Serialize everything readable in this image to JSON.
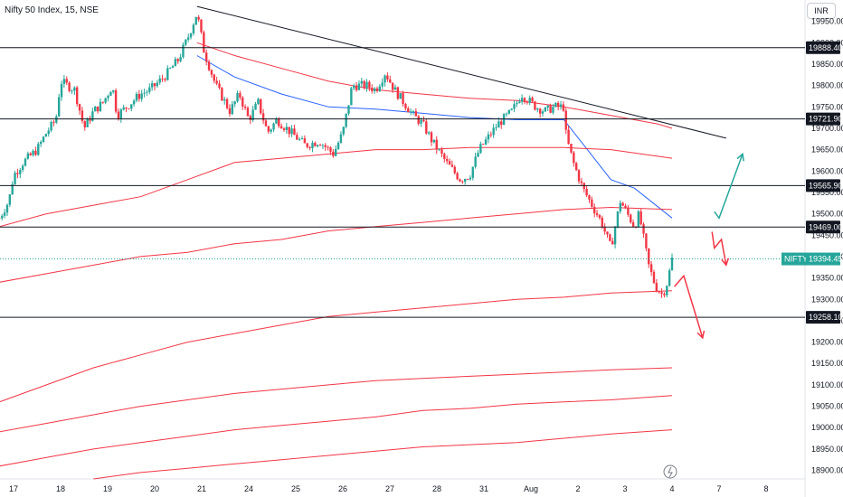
{
  "chart_data": {
    "type": "candlestick",
    "title": "Nifty 50 Index, 15, NSE",
    "currency": "INR",
    "ylim": [
      18880,
      20000
    ],
    "y_ticks": [
      19950,
      19900,
      19850,
      19800,
      19750,
      19700,
      19650,
      19600,
      19550,
      19500,
      19450,
      19400,
      19350,
      19300,
      19250,
      19200,
      19150,
      19100,
      19050,
      19000,
      18950,
      18900
    ],
    "x_ticks": [
      {
        "label": "17",
        "x": 0.3
      },
      {
        "label": "18",
        "x": 1.3
      },
      {
        "label": "19",
        "x": 2.3
      },
      {
        "label": "20",
        "x": 3.3
      },
      {
        "label": "21",
        "x": 4.3
      },
      {
        "label": "24",
        "x": 5.3
      },
      {
        "label": "25",
        "x": 6.3
      },
      {
        "label": "26",
        "x": 7.3
      },
      {
        "label": "27",
        "x": 8.3
      },
      {
        "label": "28",
        "x": 9.3
      },
      {
        "label": "31",
        "x": 10.3
      },
      {
        "label": "Aug",
        "x": 11.3
      },
      {
        "label": "2",
        "x": 12.3
      },
      {
        "label": "3",
        "x": 13.3
      },
      {
        "label": "4",
        "x": 14.3
      },
      {
        "label": "7",
        "x": 15.3
      },
      {
        "label": "8",
        "x": 16.3
      }
    ],
    "horizontal_levels": [
      {
        "value": 19888.4,
        "label": "19888.40"
      },
      {
        "value": 19721.9,
        "label": "19721.90"
      },
      {
        "value": 19565.9,
        "label": "19565.90"
      },
      {
        "value": 19469.0,
        "label": "19469.00"
      },
      {
        "value": 19258.1,
        "label": "19258.10"
      }
    ],
    "current_price": {
      "symbol": "NIFTY",
      "value": 19394.45,
      "label": "19394.45"
    },
    "trendline": {
      "from": {
        "x": 4.2,
        "y": 19985
      },
      "to": {
        "x": 15.45,
        "y": 19677
      }
    },
    "ohlc_anchors": [
      [
        0.0,
        19490
      ],
      [
        0.2,
        19530
      ],
      [
        0.3,
        19590
      ],
      [
        0.5,
        19620
      ],
      [
        0.8,
        19650
      ],
      [
        1.0,
        19690
      ],
      [
        1.2,
        19720
      ],
      [
        1.3,
        19810
      ],
      [
        1.6,
        19790
      ],
      [
        1.8,
        19700
      ],
      [
        2.0,
        19740
      ],
      [
        2.2,
        19760
      ],
      [
        2.4,
        19800
      ],
      [
        2.5,
        19730
      ],
      [
        2.7,
        19750
      ],
      [
        3.0,
        19780
      ],
      [
        3.2,
        19790
      ],
      [
        3.5,
        19820
      ],
      [
        3.8,
        19860
      ],
      [
        4.0,
        19910
      ],
      [
        4.2,
        19970
      ],
      [
        4.35,
        19880
      ],
      [
        4.6,
        19800
      ],
      [
        4.9,
        19740
      ],
      [
        5.1,
        19780
      ],
      [
        5.3,
        19720
      ],
      [
        5.5,
        19760
      ],
      [
        5.7,
        19690
      ],
      [
        5.9,
        19720
      ],
      [
        6.2,
        19690
      ],
      [
        6.5,
        19660
      ],
      [
        6.8,
        19670
      ],
      [
        7.1,
        19640
      ],
      [
        7.3,
        19690
      ],
      [
        7.5,
        19800
      ],
      [
        7.8,
        19800
      ],
      [
        8.0,
        19790
      ],
      [
        8.2,
        19830
      ],
      [
        8.4,
        19790
      ],
      [
        8.6,
        19760
      ],
      [
        8.8,
        19730
      ],
      [
        9.0,
        19710
      ],
      [
        9.2,
        19670
      ],
      [
        9.5,
        19620
      ],
      [
        9.8,
        19580
      ],
      [
        10.0,
        19590
      ],
      [
        10.2,
        19650
      ],
      [
        10.4,
        19680
      ],
      [
        10.6,
        19710
      ],
      [
        10.9,
        19740
      ],
      [
        11.1,
        19780
      ],
      [
        11.4,
        19750
      ],
      [
        11.6,
        19740
      ],
      [
        11.8,
        19750
      ],
      [
        12.0,
        19750
      ],
      [
        12.05,
        19680
      ],
      [
        12.2,
        19620
      ],
      [
        12.4,
        19560
      ],
      [
        12.6,
        19520
      ],
      [
        12.8,
        19480
      ],
      [
        13.0,
        19420
      ],
      [
        13.2,
        19530
      ],
      [
        13.35,
        19500
      ],
      [
        13.5,
        19470
      ],
      [
        13.6,
        19500
      ],
      [
        13.8,
        19380
      ],
      [
        13.95,
        19330
      ],
      [
        14.1,
        19310
      ],
      [
        14.2,
        19340
      ],
      [
        14.3,
        19394.45
      ]
    ],
    "lines": [
      {
        "name": "",
        "color": "#f23645",
        "points": [
          [
            4.2,
            19900
          ],
          [
            5.0,
            19870
          ],
          [
            6.0,
            19840
          ],
          [
            7.0,
            19810
          ],
          [
            8.0,
            19790
          ],
          [
            9.0,
            19780
          ],
          [
            10.0,
            19770
          ],
          [
            11.0,
            19765
          ],
          [
            12.0,
            19750
          ],
          [
            13.0,
            19730
          ],
          [
            14.0,
            19710
          ],
          [
            14.3,
            19700
          ]
        ]
      },
      {
        "name": "",
        "color": "#2962ff",
        "points": [
          [
            4.2,
            19870
          ],
          [
            5.0,
            19820
          ],
          [
            6.0,
            19780
          ],
          [
            7.0,
            19750
          ],
          [
            8.0,
            19745
          ],
          [
            9.0,
            19735
          ],
          [
            10.0,
            19725
          ],
          [
            11.0,
            19720
          ],
          [
            12.0,
            19720
          ],
          [
            12.5,
            19650
          ],
          [
            13.0,
            19580
          ],
          [
            13.5,
            19560
          ],
          [
            14.3,
            19490
          ]
        ]
      },
      {
        "name": "",
        "color": "#f23645",
        "points": [
          [
            0.0,
            19470
          ],
          [
            1.0,
            19500
          ],
          [
            2.0,
            19520
          ],
          [
            3.0,
            19540
          ],
          [
            4.0,
            19580
          ],
          [
            5.0,
            19620
          ],
          [
            6.0,
            19630
          ],
          [
            7.0,
            19640
          ],
          [
            8.0,
            19650
          ],
          [
            9.0,
            19650
          ],
          [
            10.0,
            19655
          ],
          [
            11.0,
            19655
          ],
          [
            12.0,
            19655
          ],
          [
            13.0,
            19650
          ],
          [
            14.3,
            19630
          ]
        ]
      },
      {
        "name": "",
        "color": "#f23645",
        "points": [
          [
            0.0,
            19340
          ],
          [
            1.0,
            19360
          ],
          [
            2.0,
            19380
          ],
          [
            3.0,
            19400
          ],
          [
            4.0,
            19410
          ],
          [
            5.0,
            19430
          ],
          [
            6.0,
            19440
          ],
          [
            7.0,
            19460
          ],
          [
            8.0,
            19470
          ],
          [
            9.0,
            19480
          ],
          [
            10.0,
            19490
          ],
          [
            11.0,
            19500
          ],
          [
            12.0,
            19510
          ],
          [
            13.0,
            19515
          ],
          [
            14.3,
            19510
          ]
        ]
      },
      {
        "name": "",
        "color": "#f23645",
        "points": [
          [
            0.0,
            19060
          ],
          [
            1.0,
            19100
          ],
          [
            2.0,
            19140
          ],
          [
            3.0,
            19170
          ],
          [
            4.0,
            19200
          ],
          [
            5.0,
            19220
          ],
          [
            6.0,
            19240
          ],
          [
            7.0,
            19260
          ],
          [
            8.0,
            19270
          ],
          [
            9.0,
            19280
          ],
          [
            10.0,
            19290
          ],
          [
            11.0,
            19300
          ],
          [
            12.0,
            19305
          ],
          [
            13.0,
            19315
          ],
          [
            14.3,
            19320
          ]
        ]
      },
      {
        "name": "",
        "color": "#f23645",
        "points": [
          [
            0.0,
            18990
          ],
          [
            1.0,
            19010
          ],
          [
            2.0,
            19030
          ],
          [
            3.0,
            19050
          ],
          [
            4.0,
            19065
          ],
          [
            5.0,
            19080
          ],
          [
            6.0,
            19090
          ],
          [
            7.0,
            19100
          ],
          [
            8.0,
            19110
          ],
          [
            9.0,
            19115
          ],
          [
            10.0,
            19120
          ],
          [
            11.0,
            19125
          ],
          [
            12.0,
            19130
          ],
          [
            13.0,
            19135
          ],
          [
            14.3,
            19140
          ]
        ]
      },
      {
        "name": "",
        "color": "#f23645",
        "points": [
          [
            0.0,
            18910
          ],
          [
            1.0,
            18930
          ],
          [
            2.0,
            18950
          ],
          [
            3.0,
            18965
          ],
          [
            4.0,
            18980
          ],
          [
            5.0,
            18995
          ],
          [
            6.0,
            19005
          ],
          [
            7.0,
            19015
          ],
          [
            8.0,
            19025
          ],
          [
            9.0,
            19040
          ],
          [
            10.0,
            19045
          ],
          [
            11.0,
            19055
          ],
          [
            12.0,
            19060
          ],
          [
            13.0,
            19065
          ],
          [
            14.3,
            19075
          ]
        ]
      },
      {
        "name": "",
        "color": "#f23645",
        "points": [
          [
            2.0,
            18880
          ],
          [
            3.0,
            18895
          ],
          [
            4.0,
            18905
          ],
          [
            5.0,
            18915
          ],
          [
            6.0,
            18925
          ],
          [
            7.0,
            18935
          ],
          [
            8.0,
            18945
          ],
          [
            9.0,
            18955
          ],
          [
            10.0,
            18960
          ],
          [
            11.0,
            18965
          ],
          [
            12.0,
            18975
          ],
          [
            13.0,
            18985
          ],
          [
            14.3,
            18995
          ]
        ]
      }
    ],
    "scenario_arrows": [
      {
        "color": "#26a69a",
        "points": [
          [
            15.2,
            19505
          ],
          [
            15.3,
            19490
          ],
          [
            15.8,
            19640
          ]
        ]
      },
      {
        "color": "#f23645",
        "points": [
          [
            15.15,
            19458
          ],
          [
            15.2,
            19420
          ],
          [
            15.35,
            19440
          ],
          [
            15.45,
            19380
          ]
        ]
      },
      {
        "color": "#f23645",
        "points": [
          [
            14.35,
            19330
          ],
          [
            14.55,
            19355
          ],
          [
            14.95,
            19210
          ]
        ]
      }
    ],
    "grid": false,
    "legend": "none"
  },
  "currency_label": "INR"
}
